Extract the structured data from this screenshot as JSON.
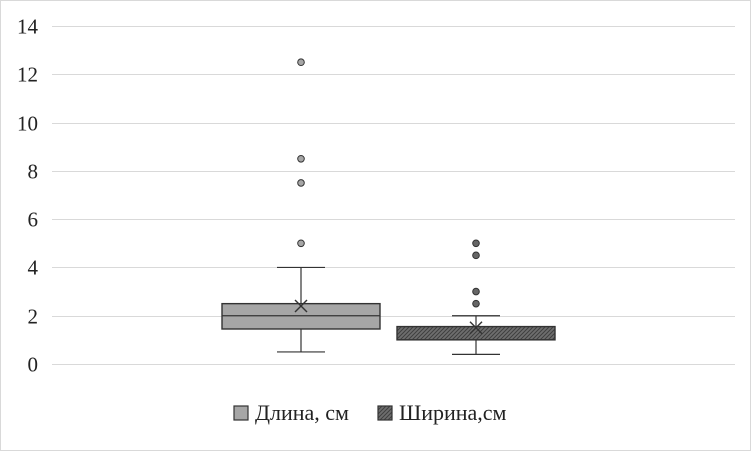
{
  "chart_data": {
    "type": "box",
    "title": "",
    "xlabel": "",
    "ylabel": "",
    "ylim": [
      0,
      14
    ],
    "yticks": [
      0,
      2,
      4,
      6,
      8,
      10,
      12,
      14
    ],
    "grid": true,
    "legend_position": "bottom",
    "series": [
      {
        "name": "Длина, см",
        "color": "#a6a6a6",
        "pattern": "solid",
        "whisker_low": 0.5,
        "q1": 1.45,
        "median": 2.0,
        "q3": 2.5,
        "whisker_high": 4.0,
        "mean": 2.4,
        "outliers": [
          5.0,
          7.5,
          8.5,
          12.5
        ]
      },
      {
        "name": "Ширина,см",
        "color": "#666666",
        "pattern": "crosshatch",
        "whisker_low": 0.4,
        "q1": 1.0,
        "median": 1.0,
        "q3": 1.55,
        "whisker_high": 2.0,
        "mean": 1.5,
        "outliers": [
          2.5,
          3.0,
          4.5,
          5.0
        ]
      }
    ]
  }
}
